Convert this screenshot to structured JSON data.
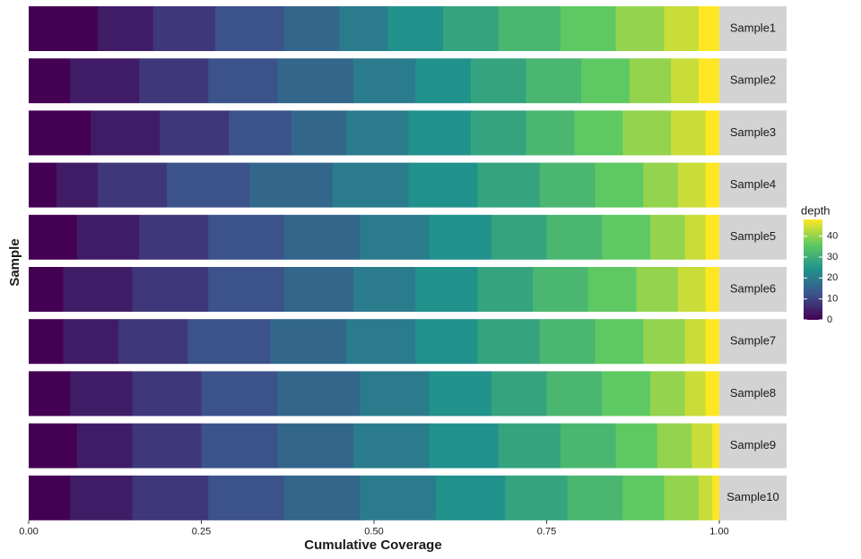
{
  "chart_data": {
    "type": "stacked_bar",
    "x_label": "Cumulative Coverage",
    "y_label": "Sample",
    "xlim": [
      0,
      1
    ],
    "xticks": [
      {
        "value": 0,
        "label": "0.00"
      },
      {
        "value": 0.25,
        "label": "0.25"
      },
      {
        "value": 0.5,
        "label": "0.50"
      },
      {
        "value": 0.75,
        "label": "0.75"
      },
      {
        "value": 1,
        "label": "1.00"
      }
    ],
    "depths": [
      0,
      4,
      8,
      12,
      16,
      20,
      24,
      28,
      32,
      36,
      40,
      44,
      48
    ],
    "colormap": [
      "#440154",
      "#3b528b",
      "#21918c",
      "#5ec962",
      "#fde725"
    ],
    "legend": {
      "title": "depth",
      "limits": [
        0,
        48
      ],
      "ticks": [
        0,
        10,
        20,
        30,
        40
      ]
    },
    "samples": [
      {
        "name": "Sample1",
        "values": [
          0.1,
          0.08,
          0.09,
          0.1,
          0.08,
          0.07,
          0.08,
          0.08,
          0.09,
          0.08,
          0.07,
          0.05,
          0.03
        ]
      },
      {
        "name": "Sample2",
        "values": [
          0.06,
          0.1,
          0.1,
          0.1,
          0.11,
          0.09,
          0.08,
          0.08,
          0.08,
          0.07,
          0.06,
          0.04,
          0.03
        ]
      },
      {
        "name": "Sample3",
        "values": [
          0.09,
          0.1,
          0.1,
          0.09,
          0.08,
          0.09,
          0.09,
          0.08,
          0.07,
          0.07,
          0.07,
          0.05,
          0.02
        ]
      },
      {
        "name": "Sample4",
        "values": [
          0.04,
          0.06,
          0.1,
          0.12,
          0.12,
          0.11,
          0.1,
          0.09,
          0.08,
          0.07,
          0.05,
          0.04,
          0.02
        ]
      },
      {
        "name": "Sample5",
        "values": [
          0.07,
          0.09,
          0.1,
          0.11,
          0.11,
          0.1,
          0.09,
          0.08,
          0.08,
          0.07,
          0.05,
          0.03,
          0.02
        ]
      },
      {
        "name": "Sample6",
        "values": [
          0.05,
          0.1,
          0.11,
          0.11,
          0.1,
          0.09,
          0.09,
          0.08,
          0.08,
          0.07,
          0.06,
          0.04,
          0.02
        ]
      },
      {
        "name": "Sample7",
        "values": [
          0.05,
          0.08,
          0.1,
          0.12,
          0.11,
          0.1,
          0.09,
          0.09,
          0.08,
          0.07,
          0.06,
          0.03,
          0.02
        ]
      },
      {
        "name": "Sample8",
        "values": [
          0.06,
          0.09,
          0.1,
          0.11,
          0.12,
          0.1,
          0.09,
          0.08,
          0.08,
          0.07,
          0.05,
          0.03,
          0.02
        ]
      },
      {
        "name": "Sample9",
        "values": [
          0.07,
          0.08,
          0.1,
          0.11,
          0.11,
          0.11,
          0.1,
          0.09,
          0.08,
          0.06,
          0.05,
          0.03,
          0.01
        ]
      },
      {
        "name": "Sample10",
        "values": [
          0.06,
          0.09,
          0.11,
          0.11,
          0.11,
          0.11,
          0.1,
          0.09,
          0.08,
          0.06,
          0.05,
          0.02,
          0.01
        ]
      }
    ]
  }
}
